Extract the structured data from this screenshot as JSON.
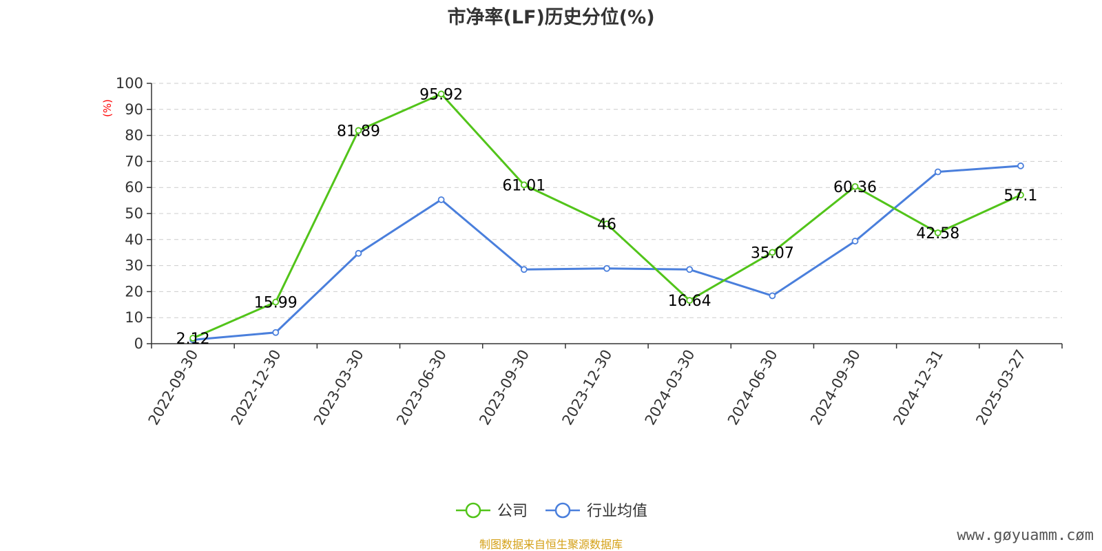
{
  "chart_data": {
    "type": "line",
    "title": "市净率(LF)历史分位(%)",
    "ylabel": "(%)",
    "ylim": [
      0,
      100
    ],
    "yticks": [
      0,
      10,
      20,
      30,
      40,
      50,
      60,
      70,
      80,
      90,
      100
    ],
    "grid": true,
    "legend_position": "bottom-center",
    "categories": [
      "2022-09-30",
      "2022-12-30",
      "2023-03-30",
      "2023-06-30",
      "2023-09-30",
      "2023-12-30",
      "2024-03-30",
      "2024-06-30",
      "2024-09-30",
      "2024-12-31",
      "2025-03-27"
    ],
    "series": [
      {
        "name": "公司",
        "color": "#52c41a",
        "values": [
          2.12,
          15.99,
          81.89,
          95.92,
          61.01,
          46,
          16.64,
          35.07,
          60.36,
          42.58,
          57.1
        ],
        "labels": [
          "2.12",
          "15.99",
          "81.89",
          "95.92",
          "61.01",
          "46",
          "16.64",
          "35.07",
          "60.36",
          "42.58",
          "57.1"
        ]
      },
      {
        "name": "行业均值",
        "color": "#4a7fdc",
        "values": [
          1.5,
          4.3,
          34.7,
          55.3,
          28.5,
          28.9,
          28.5,
          18.4,
          39.4,
          66.0,
          68.3
        ]
      }
    ]
  },
  "colors": {
    "axis": "#333333",
    "grid": "#cccccc",
    "ylabel": "#ff0000",
    "source": "#d4a017"
  },
  "source": "制图数据来自恒生聚源数据库",
  "watermark": "www.gøyuamm.cøm"
}
